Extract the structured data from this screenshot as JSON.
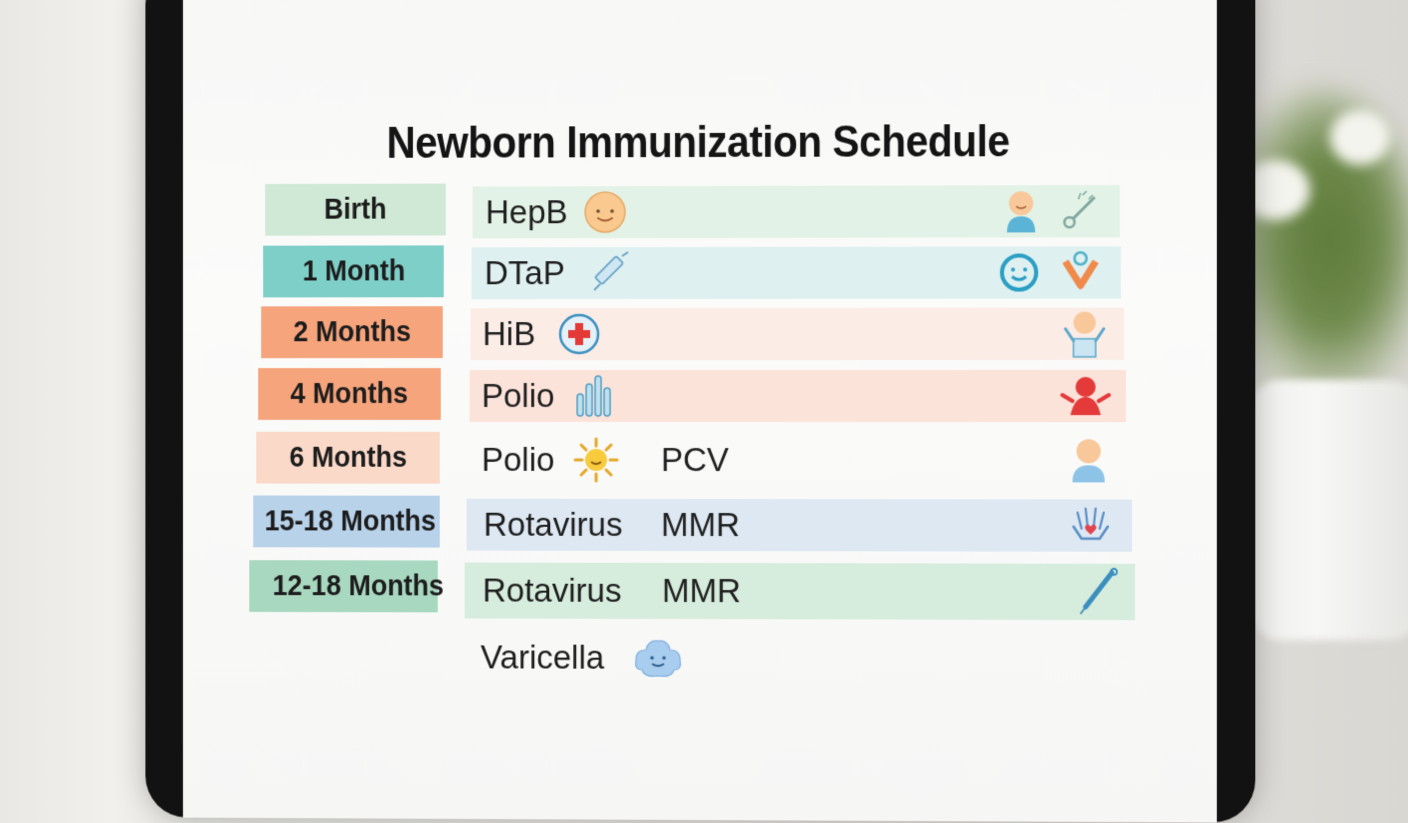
{
  "title": "Newborn Immunization Schedule",
  "colors": {
    "birth": "#cfe9d6",
    "month1": "#7fcfc9",
    "month2": "#f6a47c",
    "month4": "#f6a47c",
    "month6": "#fbd9c9",
    "months15_18": "#b8d2ea",
    "months12_18": "#a8d8c0"
  },
  "schedule": [
    {
      "age": "Birth",
      "vaccines": [
        "HepB"
      ],
      "icons": [
        "baby-face-icon",
        "baby-icon",
        "thermometer-icon"
      ]
    },
    {
      "age": "1 Month",
      "vaccines": [
        "DTaP"
      ],
      "icons": [
        "syringe-icon",
        "smiley-ring-icon",
        "ribbon-icon"
      ]
    },
    {
      "age": "2 Months",
      "vaccines": [
        "HiB"
      ],
      "icons": [
        "medical-cross-icon",
        "baby-arms-up-icon"
      ]
    },
    {
      "age": "4 Months",
      "vaccines": [
        "Polio"
      ],
      "icons": [
        "vials-icon",
        "red-figure-icon"
      ]
    },
    {
      "age": "6 Months",
      "vaccines": [
        "Polio",
        "PCV"
      ],
      "icons": [
        "sun-icon",
        "baby-icon"
      ]
    },
    {
      "age": "15-18 Months",
      "vaccines": [
        "Rotavirus",
        "MMR"
      ],
      "icons": [
        "hands-heart-icon"
      ]
    },
    {
      "age": "12-18 Months",
      "vaccines": [
        "Rotavirus",
        "MMR"
      ],
      "icons": [
        "pen-syringe-icon"
      ]
    },
    {
      "age": "",
      "vaccines": [
        "Varicella"
      ],
      "icons": [
        "cloud-face-icon"
      ]
    }
  ]
}
